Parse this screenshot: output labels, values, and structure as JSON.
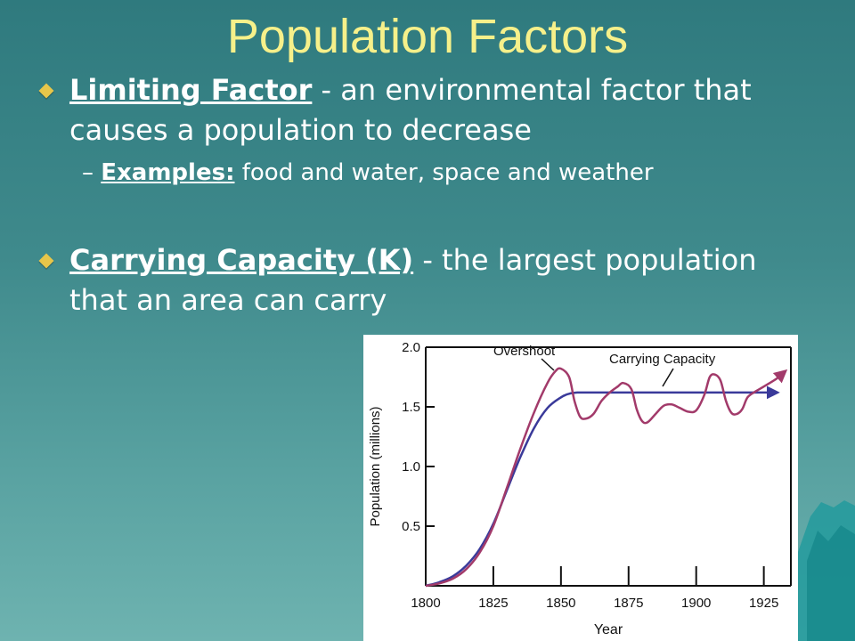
{
  "slide": {
    "title": "Population Factors",
    "bullet1": {
      "term": "Limiting Factor",
      "text": " - an environmental factor that causes a population to decrease"
    },
    "sub1": {
      "dash": "–",
      "term": "Examples:",
      "text": " food and water, space and weather"
    },
    "bullet2": {
      "term": "Carrying Capacity (K)",
      "text": " - the largest population that an area can carry"
    }
  },
  "chart_data": {
    "type": "line",
    "xlabel": "Year",
    "ylabel": "Population (millions)",
    "xlim": [
      1800,
      1935
    ],
    "ylim": [
      0,
      2.0
    ],
    "x_ticks": [
      1800,
      1825,
      1850,
      1875,
      1900,
      1925
    ],
    "y_ticks": [
      0.5,
      1.0,
      1.5,
      2.0
    ],
    "y_tick_labels": [
      "0.5",
      "1.0",
      "1.5",
      "2.0"
    ],
    "annotations": [
      "Overshoot",
      "Carrying Capacity"
    ],
    "colors": {
      "capacity": "#3a3a9a",
      "population": "#a23a6a"
    },
    "series": [
      {
        "key": "capacity",
        "x": [
          1800,
          1805,
          1810,
          1815,
          1820,
          1825,
          1830,
          1835,
          1840,
          1845,
          1850,
          1853,
          1856,
          1860,
          1870,
          1880,
          1890,
          1900,
          1910,
          1920,
          1930
        ],
        "y": [
          0.0,
          0.03,
          0.08,
          0.17,
          0.31,
          0.52,
          0.8,
          1.08,
          1.32,
          1.49,
          1.58,
          1.61,
          1.62,
          1.62,
          1.62,
          1.62,
          1.62,
          1.62,
          1.62,
          1.62,
          1.62
        ]
      },
      {
        "key": "population",
        "x": [
          1800,
          1805,
          1810,
          1815,
          1820,
          1825,
          1830,
          1835,
          1840,
          1845,
          1848,
          1850,
          1853,
          1855,
          1857,
          1859,
          1862,
          1865,
          1868,
          1871,
          1873,
          1876,
          1878,
          1880,
          1882,
          1885,
          1888,
          1891,
          1894,
          1897,
          1900,
          1903,
          1905,
          1907,
          1909,
          1911,
          1913,
          1915,
          1917,
          1919,
          1922,
          1925,
          1930,
          1933
        ],
        "y": [
          0.0,
          0.02,
          0.06,
          0.14,
          0.28,
          0.5,
          0.82,
          1.15,
          1.45,
          1.7,
          1.8,
          1.82,
          1.75,
          1.55,
          1.42,
          1.4,
          1.44,
          1.55,
          1.62,
          1.67,
          1.7,
          1.65,
          1.48,
          1.38,
          1.37,
          1.44,
          1.51,
          1.52,
          1.49,
          1.46,
          1.47,
          1.6,
          1.75,
          1.77,
          1.72,
          1.55,
          1.45,
          1.44,
          1.48,
          1.58,
          1.63,
          1.67,
          1.74,
          1.8
        ]
      }
    ]
  }
}
